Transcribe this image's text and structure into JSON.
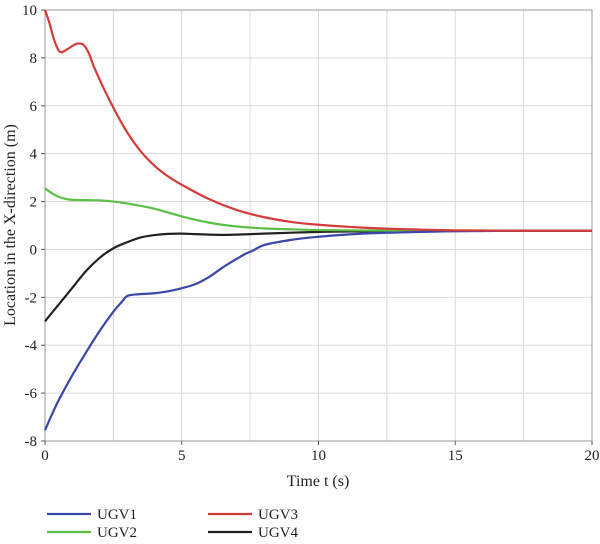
{
  "chart_data": {
    "type": "line",
    "xlabel": "Time t (s)",
    "ylabel": "Location in the X-direction (m)",
    "xlim": [
      0,
      20
    ],
    "ylim": [
      -8,
      10
    ],
    "xticks": [
      0,
      5,
      10,
      15,
      20
    ],
    "yticks": [
      -8,
      -6,
      -4,
      -2,
      0,
      2,
      4,
      6,
      8,
      10
    ],
    "grid": true,
    "legend_position": "bottom",
    "series": [
      {
        "name": "UGV1",
        "color": "#3a46a8",
        "x": [
          0,
          0.25,
          0.5,
          1,
          1.5,
          2,
          2.5,
          2.8,
          3,
          3.3,
          4,
          4.5,
          5,
          5.5,
          6,
          6.5,
          7,
          7.3,
          7.6,
          8,
          9,
          10,
          11,
          12,
          13,
          14,
          15,
          16,
          17,
          18,
          19,
          20
        ],
        "values": [
          -7.55,
          -6.9,
          -6.3,
          -5.25,
          -4.3,
          -3.4,
          -2.6,
          -2.2,
          -1.95,
          -1.88,
          -1.83,
          -1.75,
          -1.62,
          -1.45,
          -1.15,
          -0.75,
          -0.4,
          -0.2,
          -0.05,
          0.18,
          0.4,
          0.53,
          0.62,
          0.68,
          0.71,
          0.74,
          0.76,
          0.77,
          0.78,
          0.78,
          0.78,
          0.78
        ]
      },
      {
        "name": "UGV2",
        "color": "#5cc046",
        "x": [
          0,
          0.25,
          0.5,
          0.8,
          1,
          1.5,
          2,
          2.5,
          3,
          3.5,
          4,
          5,
          6,
          7,
          8,
          9,
          10,
          11,
          12,
          13,
          14,
          15,
          16,
          17,
          18,
          19,
          20
        ],
        "values": [
          2.55,
          2.35,
          2.2,
          2.1,
          2.07,
          2.06,
          2.05,
          2.0,
          1.92,
          1.82,
          1.7,
          1.38,
          1.12,
          0.96,
          0.88,
          0.84,
          0.81,
          0.8,
          0.79,
          0.79,
          0.78,
          0.78,
          0.78,
          0.78,
          0.78,
          0.78,
          0.78
        ]
      },
      {
        "name": "UGV3",
        "color": "#d43b3b",
        "x": [
          0,
          0.15,
          0.35,
          0.55,
          0.8,
          1.0,
          1.2,
          1.4,
          1.6,
          1.8,
          2.2,
          2.6,
          3,
          3.5,
          4,
          4.5,
          5,
          6,
          7,
          8,
          9,
          10,
          11,
          12,
          13,
          14,
          15,
          16,
          17,
          18,
          19,
          20
        ],
        "values": [
          10,
          9.5,
          8.7,
          8.25,
          8.35,
          8.5,
          8.6,
          8.55,
          8.2,
          7.6,
          6.6,
          5.7,
          4.9,
          4.1,
          3.5,
          3.05,
          2.7,
          2.1,
          1.65,
          1.35,
          1.15,
          1.03,
          0.95,
          0.89,
          0.85,
          0.82,
          0.8,
          0.79,
          0.78,
          0.78,
          0.78,
          0.78
        ]
      },
      {
        "name": "UGV4",
        "color": "#222222",
        "x": [
          0,
          0.5,
          1,
          1.5,
          2,
          2.5,
          3,
          3.5,
          4,
          4.5,
          5,
          5.5,
          6,
          6.5,
          7,
          8,
          9,
          10,
          11,
          12,
          13,
          14,
          15,
          16,
          17,
          18,
          19,
          20
        ],
        "values": [
          -3.0,
          -2.3,
          -1.6,
          -0.9,
          -0.35,
          0.05,
          0.3,
          0.5,
          0.6,
          0.65,
          0.66,
          0.64,
          0.62,
          0.61,
          0.62,
          0.66,
          0.7,
          0.73,
          0.75,
          0.76,
          0.77,
          0.78,
          0.78,
          0.78,
          0.78,
          0.78,
          0.78,
          0.78
        ]
      }
    ]
  }
}
